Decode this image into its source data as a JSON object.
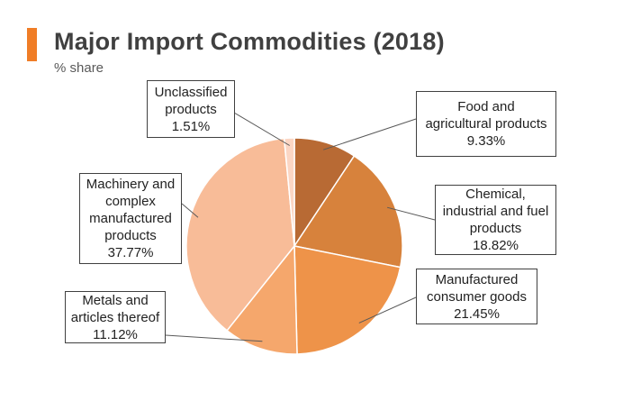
{
  "header": {
    "title": "Major Import Commodities (2018)",
    "subtitle": "% share",
    "accent_color": "#F07D26"
  },
  "chart_data": {
    "type": "pie",
    "title": "Major Import Commodities (2018)",
    "subtitle": "% share",
    "slices": [
      {
        "name_lines": [
          "Food and",
          "agricultural products"
        ],
        "value_label": "9.33%",
        "value": 9.33,
        "color": "#B86A34"
      },
      {
        "name_lines": [
          "Chemical,",
          "industrial and fuel",
          "products"
        ],
        "value_label": "18.82%",
        "value": 18.82,
        "color": "#D7823C"
      },
      {
        "name_lines": [
          "Manufactured",
          "consumer goods"
        ],
        "value_label": "21.45%",
        "value": 21.45,
        "color": "#EE9349"
      },
      {
        "name_lines": [
          "Metals and",
          "articles thereof"
        ],
        "value_label": "11.12%",
        "value": 11.12,
        "color": "#F5A76C"
      },
      {
        "name_lines": [
          "Machinery and",
          "complex",
          "manufactured",
          "products"
        ],
        "value_label": "37.77%",
        "value": 37.77,
        "color": "#F8BC98"
      },
      {
        "name_lines": [
          "Unclassified",
          "products"
        ],
        "value_label": "1.51%",
        "value": 1.51,
        "color": "#FBD6C4"
      }
    ]
  }
}
